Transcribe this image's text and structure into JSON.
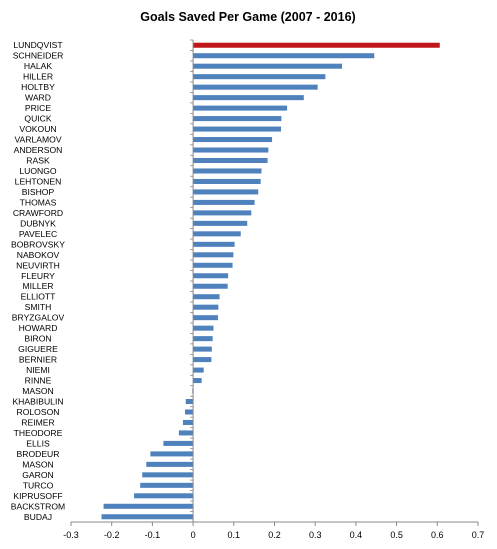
{
  "chart_data": {
    "type": "bar",
    "orientation": "horizontal",
    "title": "Goals Saved Per Game (2007 - 2016)",
    "xlabel": "",
    "ylabel": "",
    "xlim": [
      -0.3,
      0.7
    ],
    "x_ticks": [
      "-0.3",
      "-0.2",
      "-0.1",
      "0",
      "0.1",
      "0.2",
      "0.3",
      "0.4",
      "0.5",
      "0.6",
      "0.7"
    ],
    "x_tick_values": [
      -0.3,
      -0.2,
      -0.1,
      0,
      0.1,
      0.2,
      0.3,
      0.4,
      0.5,
      0.6,
      0.7
    ],
    "grid": false,
    "legend": "none",
    "colors": {
      "default": "#4f81bd",
      "highlight": "#c0161a"
    },
    "highlight": "LUNDQVIST",
    "categories": [
      "LUNDQVIST",
      "SCHNEIDER",
      "HALAK",
      "HILLER",
      "HOLTBY",
      "WARD",
      "PRICE",
      "QUICK",
      "VOKOUN",
      "VARLAMOV",
      "ANDERSON",
      "RASK",
      "LUONGO",
      "LEHTONEN",
      "BISHOP",
      "THOMAS",
      "CRAWFORD",
      "DUBNYK",
      "PAVELEC",
      "BOBROVSKY",
      "NABOKOV",
      "NEUVIRTH",
      "FLEURY",
      "MILLER",
      "ELLIOTT",
      "SMITH",
      "BRYZGALOV",
      "HOWARD",
      "BIRON",
      "GIGUERE",
      "BERNIER",
      "NIEMI",
      "RINNE",
      "MASON",
      "KHABIBULIN",
      "ROLOSON",
      "REIMER",
      "THEODORE",
      "ELLIS",
      "BRODEUR",
      "MASON",
      "GARON",
      "TURCO",
      "KIPRUSOFF",
      "BACKSTROM",
      "BUDAJ"
    ],
    "values": [
      0.606,
      0.445,
      0.366,
      0.325,
      0.306,
      0.272,
      0.231,
      0.217,
      0.216,
      0.194,
      0.185,
      0.183,
      0.168,
      0.166,
      0.16,
      0.151,
      0.143,
      0.133,
      0.117,
      0.102,
      0.099,
      0.097,
      0.086,
      0.085,
      0.065,
      0.062,
      0.061,
      0.05,
      0.048,
      0.046,
      0.045,
      0.026,
      0.021,
      -0.002,
      -0.018,
      -0.02,
      -0.025,
      -0.035,
      -0.073,
      -0.105,
      -0.115,
      -0.125,
      -0.13,
      -0.145,
      -0.22,
      -0.225
    ]
  }
}
